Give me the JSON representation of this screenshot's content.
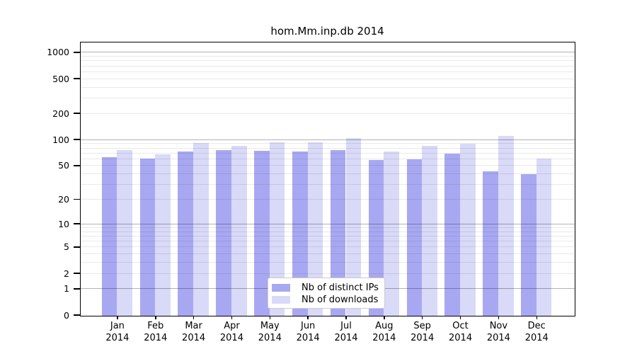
{
  "chart_data": {
    "type": "bar",
    "title": "hom.Mm.inp.db 2014",
    "categories": [
      "Jan 2014",
      "Feb 2014",
      "Mar 2014",
      "Apr 2014",
      "May 2014",
      "Jun 2014",
      "Jul 2014",
      "Aug 2014",
      "Sep 2014",
      "Oct 2014",
      "Nov 2014",
      "Dec 2014"
    ],
    "series": [
      {
        "name": "Nb of distinct IPs",
        "color": "#a8a8f2",
        "values": [
          63,
          61,
          73,
          77,
          75,
          73,
          76,
          59,
          60,
          69,
          43,
          40
        ]
      },
      {
        "name": "Nb of downloads",
        "color": "#d9d9f8",
        "values": [
          77,
          68,
          93,
          86,
          94,
          94,
          105,
          74,
          86,
          91,
          111,
          61
        ]
      }
    ],
    "y_axis": {
      "scale": "log10(1+y)",
      "ticks": [
        0,
        1,
        2,
        5,
        10,
        20,
        50,
        100,
        200,
        500,
        1000
      ],
      "range": [
        0,
        1300
      ]
    },
    "x_axis": {
      "tick_label_lines": 2
    },
    "legend": {
      "position": "lower center"
    },
    "grid": {
      "major": "horizontal lines at 1,10,100,1000",
      "minor": "log-spaced 2-9 per decade"
    }
  }
}
